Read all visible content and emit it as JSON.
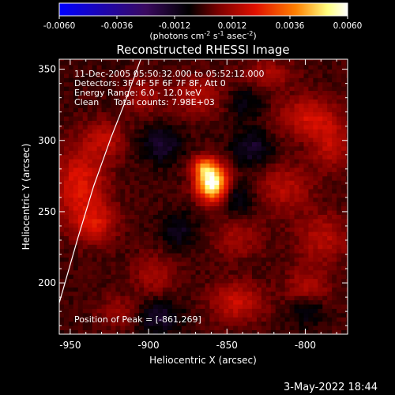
{
  "colorbar": {
    "ticks": [
      "-0.0060",
      "-0.0036",
      "-0.0012",
      "0.0012",
      "0.0036",
      "0.0060"
    ],
    "tick_values": [
      -0.006,
      -0.0036,
      -0.0012,
      0.0012,
      0.0036,
      0.006
    ],
    "range": [
      -0.006,
      0.006
    ],
    "units_pre": "(photons cm",
    "units_sup1": "-2",
    "units_mid": " s",
    "units_sup2": "-1",
    "units_mid2": " asec",
    "units_sup3": "-2",
    "units_post": ")",
    "stops": [
      "#0000ff",
      "#3a0a60",
      "#000000",
      "#7a0000",
      "#e01000",
      "#ff8000",
      "#ffff80",
      "#ffffff"
    ]
  },
  "chart_data": {
    "type": "heatmap",
    "title": "Reconstructed RHESSI Image",
    "xlabel": "Heliocentric X (arcsec)",
    "ylabel": "Heliocentric Y (arcsec)",
    "xlim": [
      -957,
      -773
    ],
    "ylim": [
      164,
      357
    ],
    "xticks": [
      -950,
      -900,
      -850,
      -800
    ],
    "yticks": [
      200,
      250,
      300,
      350
    ],
    "peak": [
      -861,
      269
    ],
    "sources": [
      {
        "x": -861,
        "y": 269,
        "sx": 7,
        "sy": 9,
        "amp": 0.0062
      },
      {
        "x": -867,
        "y": 281,
        "sx": 5,
        "sy": 5,
        "amp": 0.0024
      },
      {
        "x": -945,
        "y": 268,
        "sx": 12,
        "sy": 18,
        "amp": 0.0022
      },
      {
        "x": -936,
        "y": 240,
        "sx": 10,
        "sy": 10,
        "amp": 0.0017
      },
      {
        "x": -930,
        "y": 300,
        "sx": 9,
        "sy": 9,
        "amp": 0.0015
      },
      {
        "x": -800,
        "y": 315,
        "sx": 13,
        "sy": 10,
        "amp": 0.0019
      },
      {
        "x": -785,
        "y": 295,
        "sx": 9,
        "sy": 12,
        "amp": 0.0016
      },
      {
        "x": -815,
        "y": 265,
        "sx": 12,
        "sy": 12,
        "amp": 0.0015
      },
      {
        "x": -790,
        "y": 230,
        "sx": 12,
        "sy": 12,
        "amp": 0.0015
      },
      {
        "x": -800,
        "y": 195,
        "sx": 10,
        "sy": 10,
        "amp": 0.0014
      },
      {
        "x": -845,
        "y": 185,
        "sx": 12,
        "sy": 10,
        "amp": 0.0018
      },
      {
        "x": -870,
        "y": 330,
        "sx": 12,
        "sy": 10,
        "amp": 0.0014
      },
      {
        "x": -845,
        "y": 230,
        "sx": 12,
        "sy": 10,
        "amp": 0.0011
      },
      {
        "x": -905,
        "y": 330,
        "sx": 8,
        "sy": 10,
        "amp": 0.0012
      },
      {
        "x": -898,
        "y": 205,
        "sx": 10,
        "sy": 10,
        "amp": 0.0012
      },
      {
        "x": -825,
        "y": 345,
        "sx": 12,
        "sy": 7,
        "amp": 0.0013
      },
      {
        "x": -920,
        "y": 178,
        "sx": 10,
        "sy": 8,
        "amp": 0.0011
      },
      {
        "x": -893,
        "y": 296,
        "sx": 9,
        "sy": 9,
        "amp": -0.0015
      },
      {
        "x": -835,
        "y": 293,
        "sx": 9,
        "sy": 9,
        "amp": -0.0014
      },
      {
        "x": -896,
        "y": 175,
        "sx": 10,
        "sy": 8,
        "amp": -0.0015
      },
      {
        "x": -845,
        "y": 258,
        "sx": 8,
        "sy": 8,
        "amp": -0.0012
      },
      {
        "x": -882,
        "y": 235,
        "sx": 8,
        "sy": 9,
        "amp": -0.0011
      },
      {
        "x": -840,
        "y": 325,
        "sx": 8,
        "sy": 8,
        "amp": -0.001
      },
      {
        "x": -800,
        "y": 180,
        "sx": 8,
        "sy": 8,
        "amp": -0.0012
      }
    ],
    "limb_points": [
      [
        -957,
        186
      ],
      [
        -945,
        232
      ],
      [
        -935,
        268
      ],
      [
        -924,
        302
      ],
      [
        -915,
        327
      ],
      [
        -905,
        357
      ]
    ]
  },
  "info": {
    "time_range": "11-Dec-2005 05:50:32.000 to 05:52:12.000",
    "detectors": "Detectors: 3F 4F 5F 6F 7F 8F, Att 0",
    "energy": "Energy Range: 6.0 - 12.0 keV",
    "method": "Clean",
    "counts": "Total counts: 7.98E+03",
    "peak_label": "Position of Peak = [-861,269]"
  },
  "footer": {
    "date": "3-May-2022 18:44"
  }
}
